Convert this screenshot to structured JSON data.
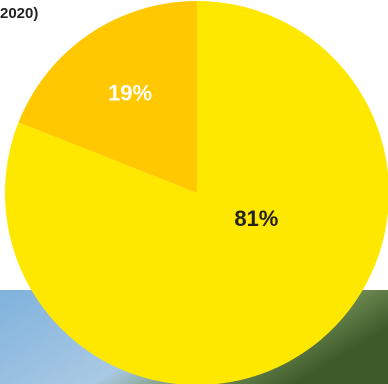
{
  "chart_data": {
    "type": "pie",
    "title": "2020)",
    "values": [
      81,
      19
    ],
    "value_labels": [
      "81%",
      "19%"
    ],
    "colors": [
      "#ffe800",
      "#ffc800"
    ],
    "label_colors": [
      "#222222",
      "#ffffff"
    ]
  }
}
